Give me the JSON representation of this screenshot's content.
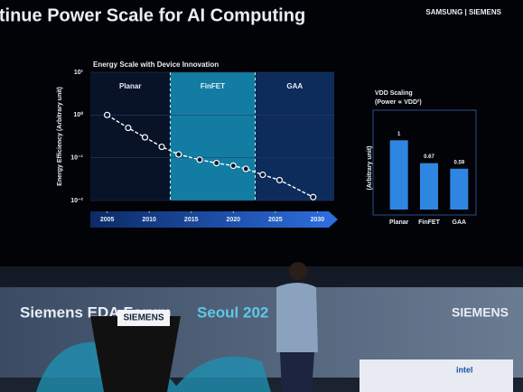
{
  "slide": {
    "title": "Continue Power Scale for AI Computing",
    "logos": "SAMSUNG | SIEMENS"
  },
  "chart_data": [
    {
      "type": "line",
      "title": "Energy Scale with Device Innovation",
      "y_label": "Energy Efficiency (Arbitrary unit)",
      "x": [
        2005,
        2007.5,
        2009.5,
        2011.5,
        2013.5,
        2016,
        2018,
        2020,
        2021.5,
        2023.5,
        2025.5,
        2029.5
      ],
      "values": [
        1,
        0.5,
        0.3,
        0.18,
        0.12,
        0.09,
        0.075,
        0.065,
        0.055,
        0.04,
        0.03,
        0.012
      ],
      "color": "#ffffff",
      "log_y": true,
      "grid": true,
      "xlim": [
        2003,
        2032
      ],
      "xticks": [
        2005,
        2010,
        2015,
        2020,
        2025,
        2030
      ],
      "ylim": [
        0.01,
        10
      ],
      "yticks": [
        {
          "value": 10,
          "label": "10¹"
        },
        {
          "value": 1,
          "label": "10⁰"
        },
        {
          "value": 0.1,
          "label": "10⁻¹"
        },
        {
          "value": 0.01,
          "label": "10⁻²"
        }
      ],
      "regions": [
        {
          "label": "Planar",
          "start": 2003,
          "end": 2012.5,
          "color": "#0b1a33"
        },
        {
          "label": "FinFET",
          "start": 2012.5,
          "end": 2022.6,
          "color": "#1aa6d8"
        },
        {
          "label": "GAA",
          "start": 2022.6,
          "end": 2032,
          "color": "#123a78"
        }
      ]
    },
    {
      "type": "bar",
      "title": "VDD Scaling",
      "subtitle": "(Power ∝ VDD²)",
      "y_label": "(Arbitrary unit)",
      "categories": [
        "Planar",
        "FinFET",
        "GAA"
      ],
      "values": [
        1,
        0.67,
        0.59
      ],
      "color": "#2f86e0",
      "ylim": [
        0,
        1.2
      ]
    }
  ],
  "stage": {
    "banner_left": "Siemens EDA Forum",
    "banner_city": "Seoul 202",
    "banner_right": "SIEMENS",
    "podium": "SIEMENS",
    "sponsor": "intel"
  }
}
